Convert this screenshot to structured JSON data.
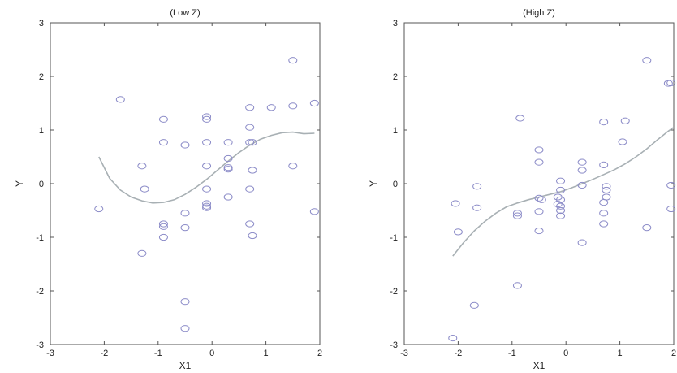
{
  "chart_data": [
    {
      "type": "scatter",
      "title": "(Low Z)",
      "xlabel": "X1",
      "ylabel": "Y",
      "xlim": [
        -3,
        2
      ],
      "ylim": [
        -3,
        3
      ],
      "xticks": [
        -3,
        -2,
        -1,
        0,
        1,
        2
      ],
      "yticks": [
        -3,
        -2,
        -1,
        0,
        1,
        2,
        3
      ],
      "grid": false,
      "marker_color": "#8c8cc8",
      "curve_color": "#a8b0b4",
      "points": [
        [
          -2.1,
          -0.47
        ],
        [
          -1.7,
          1.57
        ],
        [
          -1.3,
          0.33
        ],
        [
          -1.25,
          -0.1
        ],
        [
          -1.3,
          -1.3
        ],
        [
          -0.9,
          1.2
        ],
        [
          -0.9,
          0.77
        ],
        [
          -0.9,
          -0.75
        ],
        [
          -0.9,
          -0.8
        ],
        [
          -0.9,
          -1.0
        ],
        [
          -0.5,
          0.72
        ],
        [
          -0.5,
          -0.55
        ],
        [
          -0.5,
          -0.82
        ],
        [
          -0.5,
          -2.2
        ],
        [
          -0.5,
          -2.7
        ],
        [
          -0.1,
          1.25
        ],
        [
          -0.1,
          1.2
        ],
        [
          -0.1,
          0.77
        ],
        [
          -0.1,
          0.33
        ],
        [
          -0.1,
          -0.1
        ],
        [
          -0.1,
          -0.37
        ],
        [
          -0.1,
          -0.42
        ],
        [
          -0.1,
          -0.45
        ],
        [
          0.3,
          0.77
        ],
        [
          0.3,
          0.47
        ],
        [
          0.3,
          0.3
        ],
        [
          0.3,
          0.27
        ],
        [
          0.3,
          -0.25
        ],
        [
          0.7,
          1.42
        ],
        [
          0.7,
          1.05
        ],
        [
          0.7,
          0.77
        ],
        [
          0.75,
          0.77
        ],
        [
          0.75,
          0.25
        ],
        [
          0.7,
          -0.1
        ],
        [
          0.7,
          -0.75
        ],
        [
          0.75,
          -0.97
        ],
        [
          1.1,
          1.42
        ],
        [
          1.5,
          2.3
        ],
        [
          1.5,
          1.45
        ],
        [
          1.5,
          0.33
        ],
        [
          1.9,
          1.5
        ],
        [
          1.9,
          -0.52
        ]
      ],
      "curve": [
        [
          -2.1,
          0.5
        ],
        [
          -1.9,
          0.1
        ],
        [
          -1.7,
          -0.12
        ],
        [
          -1.5,
          -0.25
        ],
        [
          -1.3,
          -0.32
        ],
        [
          -1.1,
          -0.36
        ],
        [
          -0.9,
          -0.35
        ],
        [
          -0.7,
          -0.3
        ],
        [
          -0.5,
          -0.2
        ],
        [
          -0.3,
          -0.07
        ],
        [
          -0.1,
          0.08
        ],
        [
          0.1,
          0.25
        ],
        [
          0.3,
          0.42
        ],
        [
          0.5,
          0.58
        ],
        [
          0.7,
          0.72
        ],
        [
          0.9,
          0.83
        ],
        [
          1.1,
          0.9
        ],
        [
          1.3,
          0.95
        ],
        [
          1.5,
          0.96
        ],
        [
          1.7,
          0.93
        ],
        [
          1.9,
          0.94
        ]
      ]
    },
    {
      "type": "scatter",
      "title": "(High Z)",
      "xlabel": "X1",
      "ylabel": "Y",
      "xlim": [
        -3,
        2
      ],
      "ylim": [
        -3,
        3
      ],
      "xticks": [
        -3,
        -2,
        -1,
        0,
        1,
        2
      ],
      "yticks": [
        -3,
        -2,
        -1,
        0,
        1,
        2,
        3
      ],
      "grid": false,
      "marker_color": "#8c8cc8",
      "curve_color": "#a8b0b4",
      "points": [
        [
          -2.1,
          -2.88
        ],
        [
          -2.05,
          -0.37
        ],
        [
          -2.0,
          -0.9
        ],
        [
          -1.65,
          -0.05
        ],
        [
          -1.65,
          -0.45
        ],
        [
          -1.7,
          -2.27
        ],
        [
          -0.9,
          -0.55
        ],
        [
          -0.9,
          -0.6
        ],
        [
          -0.85,
          1.22
        ],
        [
          -0.9,
          -1.9
        ],
        [
          -0.5,
          0.63
        ],
        [
          -0.5,
          0.4
        ],
        [
          -0.5,
          -0.27
        ],
        [
          -0.45,
          -0.3
        ],
        [
          -0.5,
          -0.52
        ],
        [
          -0.5,
          -0.88
        ],
        [
          -0.1,
          0.05
        ],
        [
          -0.1,
          -0.12
        ],
        [
          -0.15,
          -0.25
        ],
        [
          -0.1,
          -0.3
        ],
        [
          -0.15,
          -0.38
        ],
        [
          -0.1,
          -0.42
        ],
        [
          -0.1,
          -0.5
        ],
        [
          -0.1,
          -0.6
        ],
        [
          0.3,
          0.4
        ],
        [
          0.3,
          0.25
        ],
        [
          0.3,
          -0.03
        ],
        [
          0.3,
          -1.1
        ],
        [
          0.7,
          1.15
        ],
        [
          0.7,
          0.35
        ],
        [
          0.75,
          -0.05
        ],
        [
          0.75,
          -0.12
        ],
        [
          0.75,
          -0.25
        ],
        [
          0.7,
          -0.35
        ],
        [
          0.7,
          -0.55
        ],
        [
          0.7,
          -0.75
        ],
        [
          1.1,
          1.17
        ],
        [
          1.05,
          0.78
        ],
        [
          1.5,
          2.3
        ],
        [
          1.5,
          -0.82
        ],
        [
          1.9,
          1.87
        ],
        [
          1.95,
          1.88
        ],
        [
          1.95,
          -0.03
        ],
        [
          1.95,
          -0.47
        ]
      ],
      "curve": [
        [
          -2.1,
          -1.35
        ],
        [
          -1.9,
          -1.1
        ],
        [
          -1.7,
          -0.88
        ],
        [
          -1.5,
          -0.7
        ],
        [
          -1.3,
          -0.55
        ],
        [
          -1.1,
          -0.43
        ],
        [
          -0.9,
          -0.36
        ],
        [
          -0.7,
          -0.3
        ],
        [
          -0.5,
          -0.25
        ],
        [
          -0.3,
          -0.2
        ],
        [
          -0.1,
          -0.15
        ],
        [
          0.1,
          -0.08
        ],
        [
          0.3,
          0.0
        ],
        [
          0.5,
          0.08
        ],
        [
          0.7,
          0.17
        ],
        [
          0.9,
          0.26
        ],
        [
          1.1,
          0.37
        ],
        [
          1.3,
          0.5
        ],
        [
          1.5,
          0.65
        ],
        [
          1.7,
          0.82
        ],
        [
          1.9,
          0.98
        ],
        [
          2.0,
          1.05
        ]
      ]
    }
  ]
}
